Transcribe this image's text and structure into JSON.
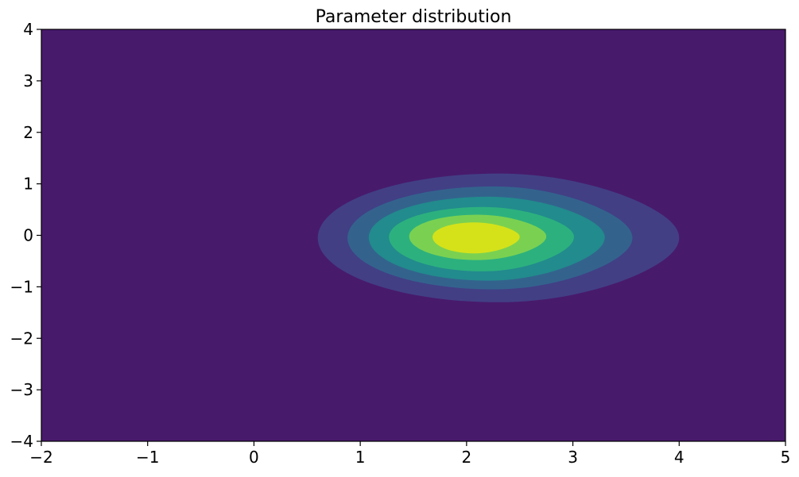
{
  "chart_data": {
    "type": "heatmap",
    "subtype": "filled-contour",
    "title": "Parameter distribution",
    "xlabel": "",
    "ylabel": "",
    "xlim": [
      -2,
      5
    ],
    "ylim": [
      -4,
      4
    ],
    "x_ticks": [
      -2,
      -1,
      0,
      1,
      2,
      3,
      4,
      5
    ],
    "y_ticks": [
      -4,
      -3,
      -2,
      -1,
      0,
      1,
      2,
      3,
      4
    ],
    "x_tick_labels": [
      "−2",
      "−1",
      "0",
      "1",
      "2",
      "3",
      "4",
      "5"
    ],
    "y_tick_labels": [
      "−4",
      "−3",
      "−2",
      "−1",
      "0",
      "1",
      "2",
      "3",
      "4"
    ],
    "grid": false,
    "colormap": "viridis",
    "background_color": "#481a6c",
    "contour_levels": [
      {
        "level": 1,
        "color": "#423f85",
        "center": [
          2.3,
          -0.05
        ],
        "x_range": [
          0.6,
          4.0
        ],
        "y_range": [
          -1.3,
          1.2
        ]
      },
      {
        "level": 2,
        "color": "#33638d",
        "center": [
          2.25,
          -0.05
        ],
        "x_range": [
          0.88,
          3.56
        ],
        "y_range": [
          -1.05,
          0.95
        ]
      },
      {
        "level": 3,
        "color": "#228b8d",
        "center": [
          2.2,
          -0.04
        ],
        "x_range": [
          1.08,
          3.3
        ],
        "y_range": [
          -0.88,
          0.75
        ]
      },
      {
        "level": 4,
        "color": "#2cb17e",
        "center": [
          2.15,
          -0.03
        ],
        "x_range": [
          1.27,
          3.01
        ],
        "y_range": [
          -0.7,
          0.55
        ]
      },
      {
        "level": 5,
        "color": "#7ad151",
        "center": [
          2.1,
          -0.02
        ],
        "x_range": [
          1.46,
          2.75
        ],
        "y_range": [
          -0.48,
          0.4
        ]
      },
      {
        "level": 6,
        "color": "#d5e21a",
        "center": [
          2.07,
          -0.03
        ],
        "x_range": [
          1.68,
          2.5
        ],
        "y_range": [
          -0.35,
          0.25
        ]
      }
    ]
  }
}
